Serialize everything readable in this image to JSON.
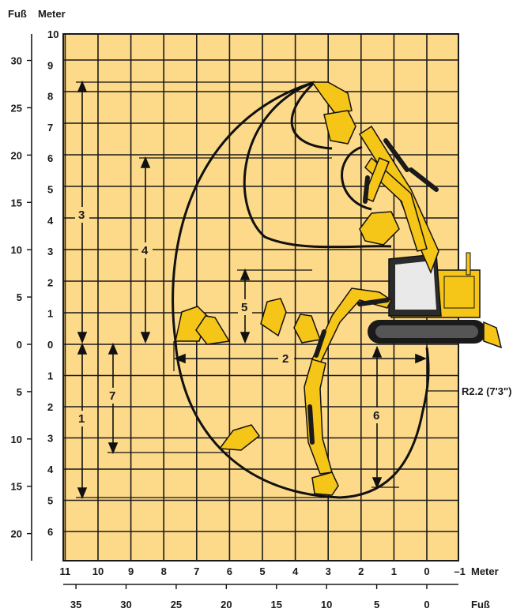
{
  "headers": {
    "feet_unit": "Fuß",
    "meter_unit": "Meter"
  },
  "y_meter_labels_upper": [
    "10",
    "9",
    "8",
    "7",
    "6",
    "5",
    "4",
    "3",
    "2",
    "1",
    "0"
  ],
  "y_meter_labels_lower": [
    "1",
    "2",
    "3",
    "4",
    "5",
    "6"
  ],
  "y_feet_labels_upper": [
    "30",
    "25",
    "20",
    "15",
    "10",
    "5",
    "0"
  ],
  "y_feet_labels_lower": [
    "5",
    "10",
    "15",
    "20"
  ],
  "x_meter_labels": [
    "11",
    "10",
    "9",
    "8",
    "7",
    "6",
    "5",
    "4",
    "3",
    "2",
    "1",
    "0",
    "–1"
  ],
  "x_meter_unit": "Meter",
  "x_feet_labels": [
    "35",
    "30",
    "25",
    "20",
    "15",
    "10",
    "5",
    "0"
  ],
  "x_feet_unit": "Fuß",
  "dimension_labels": [
    "1",
    "2",
    "3",
    "4",
    "5",
    "6",
    "7"
  ],
  "radius_label": "R2.2 (7'3\")",
  "colors": {
    "grid_background": "#fdd98a",
    "grid_line": "#111111",
    "machine": "#f5c518",
    "track": "#1a1a1a"
  }
}
